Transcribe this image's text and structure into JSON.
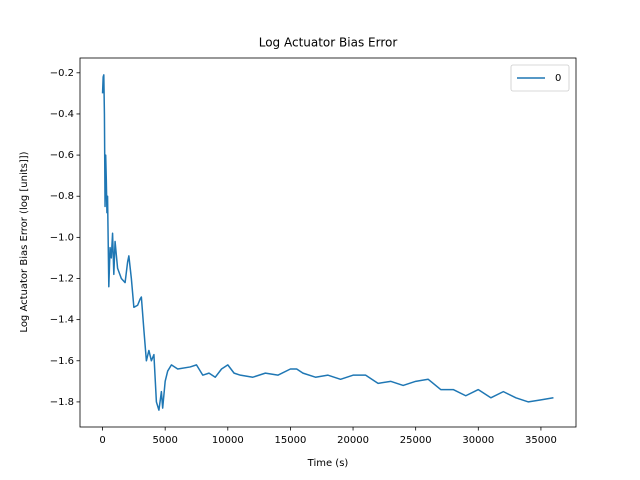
{
  "chart_data": {
    "type": "line",
    "title": "Log Actuator Bias Error",
    "xlabel": "Time (s)",
    "ylabel": "Log Actuator Bias Error (log [units]])",
    "x": [
      0,
      50,
      100,
      150,
      200,
      250,
      300,
      350,
      400,
      500,
      600,
      700,
      800,
      900,
      1000,
      1200,
      1500,
      1800,
      2000,
      2100,
      2300,
      2500,
      2800,
      3000,
      3100,
      3300,
      3500,
      3700,
      3900,
      4100,
      4300,
      4500,
      4700,
      4800,
      5000,
      5200,
      5500,
      6000,
      7000,
      7500,
      8000,
      8500,
      9000,
      9500,
      10000,
      10500,
      11000,
      12000,
      13000,
      14000,
      15000,
      15500,
      16000,
      17000,
      18000,
      19000,
      20000,
      21000,
      22000,
      23000,
      24000,
      25000,
      26000,
      27000,
      28000,
      29000,
      30000,
      31000,
      32000,
      33000,
      34000,
      35000,
      36000
    ],
    "series": [
      {
        "name": "0",
        "color": "#1f77b4",
        "values": [
          -0.3,
          -0.22,
          -0.21,
          -0.4,
          -0.85,
          -0.6,
          -0.72,
          -0.88,
          -0.8,
          -1.24,
          -1.05,
          -1.1,
          -0.98,
          -1.18,
          -1.02,
          -1.15,
          -1.2,
          -1.22,
          -1.12,
          -1.09,
          -1.2,
          -1.34,
          -1.33,
          -1.3,
          -1.29,
          -1.45,
          -1.6,
          -1.55,
          -1.6,
          -1.57,
          -1.8,
          -1.84,
          -1.75,
          -1.83,
          -1.7,
          -1.65,
          -1.62,
          -1.64,
          -1.63,
          -1.62,
          -1.67,
          -1.66,
          -1.68,
          -1.64,
          -1.62,
          -1.66,
          -1.67,
          -1.68,
          -1.66,
          -1.67,
          -1.64,
          -1.64,
          -1.66,
          -1.68,
          -1.67,
          -1.69,
          -1.67,
          -1.67,
          -1.71,
          -1.7,
          -1.72,
          -1.7,
          -1.69,
          -1.74,
          -1.74,
          -1.77,
          -1.74,
          -1.78,
          -1.75,
          -1.78,
          -1.8,
          -1.79,
          -1.78
        ]
      }
    ],
    "xlim": [
      -1800,
      37800
    ],
    "ylim": [
      -1.922,
      -0.128
    ],
    "xticks": [
      0,
      5000,
      10000,
      15000,
      20000,
      25000,
      30000,
      35000
    ],
    "yticks": [
      {
        "value": -1.8,
        "label": "−1.8"
      },
      {
        "value": -1.6,
        "label": "−1.6"
      },
      {
        "value": -1.4,
        "label": "−1.4"
      },
      {
        "value": -1.2,
        "label": "−1.2"
      },
      {
        "value": -1.0,
        "label": "−1.0"
      },
      {
        "value": -0.8,
        "label": "−0.8"
      },
      {
        "value": -0.6,
        "label": "−0.6"
      },
      {
        "value": -0.4,
        "label": "−0.4"
      },
      {
        "value": -0.2,
        "label": "−0.2"
      }
    ],
    "legend": "upper right"
  }
}
